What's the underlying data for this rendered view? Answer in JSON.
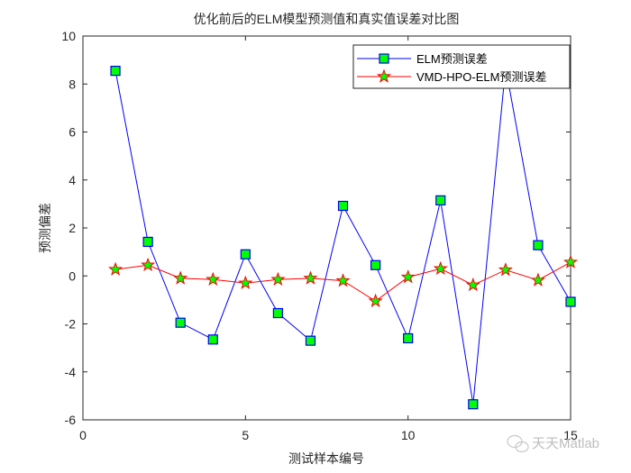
{
  "chart_data": {
    "type": "line",
    "title": "优化前后的ELM模型预测值和真实值误差对比图",
    "xlabel": "测试样本编号",
    "ylabel": "预测偏差",
    "xlim": [
      0,
      15
    ],
    "ylim": [
      -6,
      10
    ],
    "xticks": [
      0,
      5,
      10,
      15
    ],
    "yticks": [
      -6,
      -4,
      -2,
      0,
      2,
      4,
      6,
      8,
      10
    ],
    "grid": false,
    "legend_position": "top-right",
    "x": [
      1,
      2,
      3,
      4,
      5,
      6,
      7,
      8,
      9,
      10,
      11,
      12,
      13,
      14,
      15
    ],
    "series": [
      {
        "name": "ELM预测误差",
        "color": "#0000ff",
        "marker": "square",
        "marker_face": "#00ff00",
        "values": [
          8.55,
          1.42,
          -1.95,
          -2.65,
          0.9,
          -1.55,
          -2.7,
          2.92,
          0.45,
          -2.6,
          3.15,
          -5.35,
          8.7,
          1.28,
          -1.08
        ]
      },
      {
        "name": "VMD-HPO-ELM预测误差",
        "color": "#ff0000",
        "marker": "star",
        "marker_face": "#00ff00",
        "values": [
          0.27,
          0.45,
          -0.1,
          -0.15,
          -0.3,
          -0.15,
          -0.1,
          -0.2,
          -1.05,
          -0.05,
          0.3,
          -0.38,
          0.25,
          -0.18,
          0.57
        ]
      }
    ]
  },
  "watermark": "天天Matlab"
}
